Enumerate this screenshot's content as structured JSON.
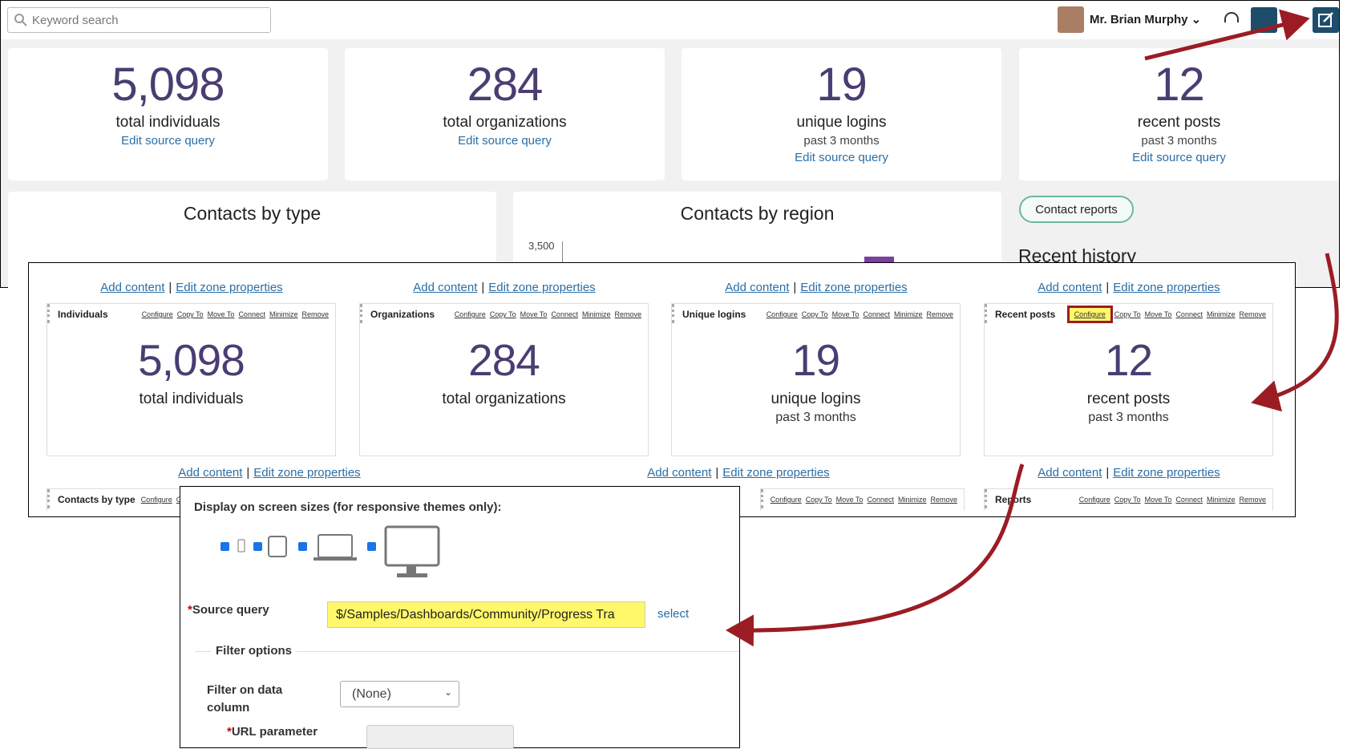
{
  "top_bar": {
    "search_placeholder": "Keyword search",
    "user_name": "Mr. Brian Murphy"
  },
  "stats": [
    {
      "value": "5,098",
      "label": "total individuals",
      "link": "Edit source query"
    },
    {
      "value": "284",
      "label": "total organizations",
      "link": "Edit source query"
    },
    {
      "value": "19",
      "label": "unique logins",
      "sublabel": "past 3 months",
      "link": "Edit source query"
    },
    {
      "value": "12",
      "label": "recent posts",
      "sublabel": "past 3 months",
      "link": "Edit source query"
    }
  ],
  "panels": {
    "contacts_by_type": "Contacts by type",
    "contacts_by_region": "Contacts by region",
    "axis_tick": "3,500",
    "contact_reports_button": "Contact reports",
    "recent_history": "Recent history"
  },
  "edit_view": {
    "add_content": "Add content",
    "separator": "|",
    "edit_zone": "Edit zone properties",
    "toolbar": [
      "Configure",
      "Copy To",
      "Move To",
      "Connect",
      "Minimize",
      "Remove"
    ],
    "parts": [
      {
        "title": "Individuals",
        "value": "5,098",
        "label": "total individuals"
      },
      {
        "title": "Organizations",
        "value": "284",
        "label": "total organizations"
      },
      {
        "title": "Unique logins",
        "value": "19",
        "label": "unique logins",
        "sublabel": "past 3 months"
      },
      {
        "title": "Recent posts",
        "value": "12",
        "label": "recent posts",
        "sublabel": "past 3 months"
      }
    ],
    "lower_parts": [
      "Contacts by type",
      "Reports"
    ]
  },
  "form": {
    "screen_sizes_label": "Display on screen sizes (for responsive themes only):",
    "required_mark": "*",
    "source_query_label": "Source query",
    "source_query_value": "$/Samples/Dashboards/Community/Progress Tra",
    "select_link": "select",
    "filter_options": "Filter options",
    "filter_column_label": "Filter on data column",
    "filter_column_value": "(None)",
    "url_parameter_label": "URL parameter"
  }
}
